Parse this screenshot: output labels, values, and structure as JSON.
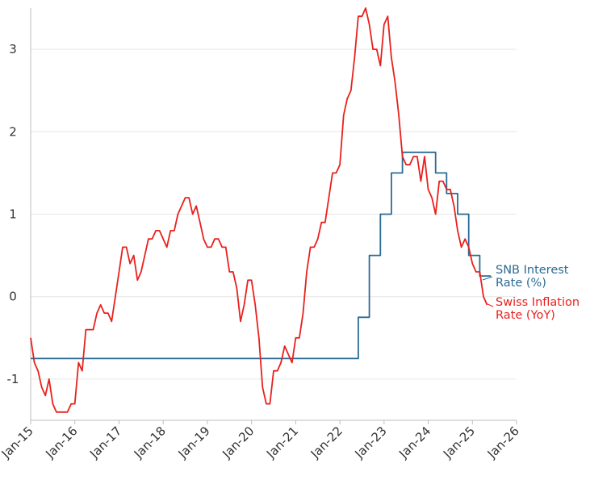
{
  "chart_data": {
    "type": "line",
    "title": "",
    "xlabel": "",
    "ylabel": "",
    "x_ticks": [
      "Jan-15",
      "Jan-16",
      "Jan-17",
      "Jan-18",
      "Jan-19",
      "Jan-20",
      "Jan-21",
      "Jan-22",
      "Jan-23",
      "Jan-24",
      "Jan-25",
      "Jan-26"
    ],
    "y_ticks": [
      -1,
      0,
      1,
      2,
      3
    ],
    "xlim": [
      "2015-01",
      "2026-01"
    ],
    "ylim": [
      -1.5,
      3.5
    ],
    "grid": "horizontal",
    "legend": "direct labels at line ends (right)",
    "series": [
      {
        "name": "SNB Interest Rate (%)",
        "label_lines": [
          "SNB Interest",
          "Rate (%)"
        ],
        "color": "#2b6a94",
        "step": true,
        "points": [
          [
            "2015-01",
            -0.75
          ],
          [
            "2022-06",
            -0.25
          ],
          [
            "2022-09",
            0.5
          ],
          [
            "2022-12",
            1.0
          ],
          [
            "2023-03",
            1.5
          ],
          [
            "2023-06",
            1.75
          ],
          [
            "2024-03",
            1.5
          ],
          [
            "2024-06",
            1.25
          ],
          [
            "2024-09",
            1.0
          ],
          [
            "2024-12",
            0.5
          ],
          [
            "2025-03",
            0.25
          ]
        ]
      },
      {
        "name": "Swiss Inflation Rate (YoY)",
        "label_lines": [
          "Swiss Inflation",
          "Rate (YoY)"
        ],
        "color": "#e8211d",
        "step": false,
        "points": [
          [
            "2015-01",
            -0.5
          ],
          [
            "2015-02",
            -0.8
          ],
          [
            "2015-03",
            -0.9
          ],
          [
            "2015-04",
            -1.1
          ],
          [
            "2015-05",
            -1.2
          ],
          [
            "2015-06",
            -1.0
          ],
          [
            "2015-07",
            -1.3
          ],
          [
            "2015-08",
            -1.4
          ],
          [
            "2015-09",
            -1.4
          ],
          [
            "2015-10",
            -1.4
          ],
          [
            "2015-11",
            -1.4
          ],
          [
            "2015-12",
            -1.3
          ],
          [
            "2016-01",
            -1.3
          ],
          [
            "2016-02",
            -0.8
          ],
          [
            "2016-03",
            -0.9
          ],
          [
            "2016-04",
            -0.4
          ],
          [
            "2016-05",
            -0.4
          ],
          [
            "2016-06",
            -0.4
          ],
          [
            "2016-07",
            -0.2
          ],
          [
            "2016-08",
            -0.1
          ],
          [
            "2016-09",
            -0.2
          ],
          [
            "2016-10",
            -0.2
          ],
          [
            "2016-11",
            -0.3
          ],
          [
            "2016-12",
            0.0
          ],
          [
            "2017-01",
            0.3
          ],
          [
            "2017-02",
            0.6
          ],
          [
            "2017-03",
            0.6
          ],
          [
            "2017-04",
            0.4
          ],
          [
            "2017-05",
            0.5
          ],
          [
            "2017-06",
            0.2
          ],
          [
            "2017-07",
            0.3
          ],
          [
            "2017-08",
            0.5
          ],
          [
            "2017-09",
            0.7
          ],
          [
            "2017-10",
            0.7
          ],
          [
            "2017-11",
            0.8
          ],
          [
            "2017-12",
            0.8
          ],
          [
            "2018-01",
            0.7
          ],
          [
            "2018-02",
            0.6
          ],
          [
            "2018-03",
            0.8
          ],
          [
            "2018-04",
            0.8
          ],
          [
            "2018-05",
            1.0
          ],
          [
            "2018-06",
            1.1
          ],
          [
            "2018-07",
            1.2
          ],
          [
            "2018-08",
            1.2
          ],
          [
            "2018-09",
            1.0
          ],
          [
            "2018-10",
            1.1
          ],
          [
            "2018-11",
            0.9
          ],
          [
            "2018-12",
            0.7
          ],
          [
            "2019-01",
            0.6
          ],
          [
            "2019-02",
            0.6
          ],
          [
            "2019-03",
            0.7
          ],
          [
            "2019-04",
            0.7
          ],
          [
            "2019-05",
            0.6
          ],
          [
            "2019-06",
            0.6
          ],
          [
            "2019-07",
            0.3
          ],
          [
            "2019-08",
            0.3
          ],
          [
            "2019-09",
            0.1
          ],
          [
            "2019-10",
            -0.3
          ],
          [
            "2019-11",
            -0.1
          ],
          [
            "2019-12",
            0.2
          ],
          [
            "2020-01",
            0.2
          ],
          [
            "2020-02",
            -0.1
          ],
          [
            "2020-03",
            -0.5
          ],
          [
            "2020-04",
            -1.1
          ],
          [
            "2020-05",
            -1.3
          ],
          [
            "2020-06",
            -1.3
          ],
          [
            "2020-07",
            -0.9
          ],
          [
            "2020-08",
            -0.9
          ],
          [
            "2020-09",
            -0.8
          ],
          [
            "2020-10",
            -0.6
          ],
          [
            "2020-11",
            -0.7
          ],
          [
            "2020-12",
            -0.8
          ],
          [
            "2021-01",
            -0.5
          ],
          [
            "2021-02",
            -0.5
          ],
          [
            "2021-03",
            -0.2
          ],
          [
            "2021-04",
            0.3
          ],
          [
            "2021-05",
            0.6
          ],
          [
            "2021-06",
            0.6
          ],
          [
            "2021-07",
            0.7
          ],
          [
            "2021-08",
            0.9
          ],
          [
            "2021-09",
            0.9
          ],
          [
            "2021-10",
            1.2
          ],
          [
            "2021-11",
            1.5
          ],
          [
            "2021-12",
            1.5
          ],
          [
            "2022-01",
            1.6
          ],
          [
            "2022-02",
            2.2
          ],
          [
            "2022-03",
            2.4
          ],
          [
            "2022-04",
            2.5
          ],
          [
            "2022-05",
            2.9
          ],
          [
            "2022-06",
            3.4
          ],
          [
            "2022-07",
            3.4
          ],
          [
            "2022-08",
            3.5
          ],
          [
            "2022-09",
            3.3
          ],
          [
            "2022-10",
            3.0
          ],
          [
            "2022-11",
            3.0
          ],
          [
            "2022-12",
            2.8
          ],
          [
            "2023-01",
            3.3
          ],
          [
            "2023-02",
            3.4
          ],
          [
            "2023-03",
            2.9
          ],
          [
            "2023-04",
            2.6
          ],
          [
            "2023-05",
            2.2
          ],
          [
            "2023-06",
            1.7
          ],
          [
            "2023-07",
            1.6
          ],
          [
            "2023-08",
            1.6
          ],
          [
            "2023-09",
            1.7
          ],
          [
            "2023-10",
            1.7
          ],
          [
            "2023-11",
            1.4
          ],
          [
            "2023-12",
            1.7
          ],
          [
            "2024-01",
            1.3
          ],
          [
            "2024-02",
            1.2
          ],
          [
            "2024-03",
            1.0
          ],
          [
            "2024-04",
            1.4
          ],
          [
            "2024-05",
            1.4
          ],
          [
            "2024-06",
            1.3
          ],
          [
            "2024-07",
            1.3
          ],
          [
            "2024-08",
            1.1
          ],
          [
            "2024-09",
            0.8
          ],
          [
            "2024-10",
            0.6
          ],
          [
            "2024-11",
            0.7
          ],
          [
            "2024-12",
            0.6
          ],
          [
            "2025-01",
            0.4
          ],
          [
            "2025-02",
            0.3
          ],
          [
            "2025-03",
            0.3
          ],
          [
            "2025-04",
            0.0
          ],
          [
            "2025-05",
            -0.1
          ]
        ]
      }
    ]
  }
}
